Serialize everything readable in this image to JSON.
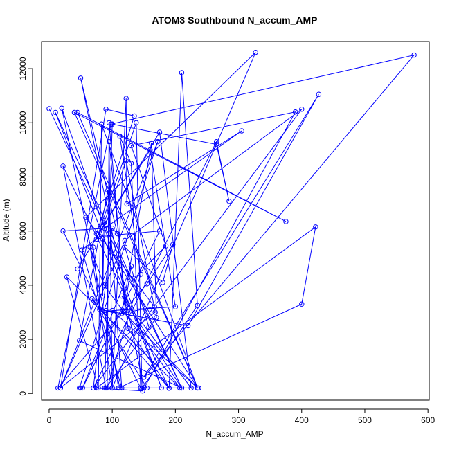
{
  "chart_data": {
    "type": "line",
    "title": "ATOM3 Southbound N_accum_AMP",
    "xlabel": "N_accum_AMP",
    "ylabel": "Altitude (m)",
    "xlim": [
      -12,
      602
    ],
    "ylim": [
      -250,
      13000
    ],
    "xticks": [
      0,
      100,
      200,
      300,
      400,
      500,
      600
    ],
    "yticks": [
      0,
      2000,
      4000,
      6000,
      8000,
      10000,
      12000
    ],
    "series_color": "#0000ff",
    "series": [
      {
        "markers": "open-circle",
        "points": [
          [
            0,
            10520
          ],
          [
            210,
            200
          ],
          [
            10,
            10380
          ],
          [
            178,
            200
          ],
          [
            20,
            10540
          ],
          [
            112,
            200
          ],
          [
            48,
            200
          ],
          [
            172,
            9300
          ],
          [
            18,
            200
          ],
          [
            90,
            10500
          ],
          [
            135,
            10250
          ],
          [
            75,
            5900
          ],
          [
            75,
            5700
          ],
          [
            138,
            10000
          ],
          [
            147,
            180
          ],
          [
            235,
            3250
          ],
          [
            210,
            11850
          ],
          [
            190,
            190
          ],
          [
            68,
            3500
          ],
          [
            155,
            200
          ],
          [
            237,
            200
          ],
          [
            50,
            200
          ],
          [
            88,
            200
          ],
          [
            100,
            9950
          ],
          [
            265,
            9200
          ],
          [
            285,
            7100
          ],
          [
            265,
            9300
          ],
          [
            70,
            200
          ],
          [
            100,
            6100
          ],
          [
            108,
            5900
          ],
          [
            50,
            11650
          ],
          [
            150,
            200
          ],
          [
            75,
            200
          ],
          [
            422,
            6150
          ],
          [
            400,
            3300
          ],
          [
            110,
            200
          ],
          [
            90,
            3060
          ],
          [
            118,
            3000
          ],
          [
            235,
            200
          ],
          [
            45,
            10380
          ],
          [
            375,
            6350
          ],
          [
            40,
            10380
          ],
          [
            235,
            200
          ],
          [
            100,
            3060
          ],
          [
            200,
            3200
          ],
          [
            160,
            9000
          ],
          [
            45,
            4600
          ],
          [
            175,
            9650
          ],
          [
            225,
            200
          ],
          [
            115,
            3600
          ],
          [
            210,
            200
          ],
          [
            48,
            1950
          ],
          [
            93,
            7500
          ],
          [
            115,
            200
          ],
          [
            52,
            5300
          ],
          [
            80,
            5800
          ],
          [
            175,
            6000
          ],
          [
            53,
            200
          ],
          [
            130,
            4700
          ],
          [
            120,
            3200
          ],
          [
            95,
            10000
          ],
          [
            92,
            200
          ],
          [
            145,
            4400
          ],
          [
            112,
            9500
          ],
          [
            130,
            8500
          ],
          [
            145,
            200
          ],
          [
            22,
            6000
          ],
          [
            88,
            6100
          ],
          [
            305,
            9700
          ],
          [
            123,
            7000
          ],
          [
            122,
            10900
          ],
          [
            100,
            200
          ],
          [
            95,
            9300
          ],
          [
            125,
            2400
          ],
          [
            190,
            190
          ],
          [
            22,
            8400
          ],
          [
            90,
            200
          ],
          [
            170,
            2800
          ],
          [
            162,
            9250
          ],
          [
            115,
            2950
          ],
          [
            167,
            3200
          ],
          [
            58,
            6500
          ],
          [
            327,
            12600
          ],
          [
            100,
            200
          ],
          [
            65,
            5400
          ],
          [
            87,
            4000
          ],
          [
            207,
            200
          ],
          [
            28,
            4300
          ],
          [
            78,
            200
          ],
          [
            83,
            9950
          ],
          [
            235,
            200
          ],
          [
            85,
            5700
          ],
          [
            85,
            3600
          ],
          [
            87,
            6300
          ],
          [
            122,
            8600
          ],
          [
            168,
            3000
          ],
          [
            18,
            200
          ],
          [
            120,
            5650
          ],
          [
            400,
            10500
          ],
          [
            70,
            200
          ],
          [
            148,
            90
          ],
          [
            390,
            10400
          ],
          [
            130,
            9150
          ],
          [
            185,
            5450
          ],
          [
            135,
            4250
          ],
          [
            158,
            2450
          ],
          [
            120,
            5400
          ],
          [
            180,
            4100
          ],
          [
            196,
            5500
          ],
          [
            155,
            4050
          ],
          [
            14,
            200
          ],
          [
            98,
            9950
          ],
          [
            578,
            12500
          ],
          [
            150,
            600
          ],
          [
            427,
            11050
          ],
          [
            220,
            2500
          ],
          [
            80,
            3100
          ],
          [
            70,
            5400
          ]
        ]
      }
    ]
  }
}
